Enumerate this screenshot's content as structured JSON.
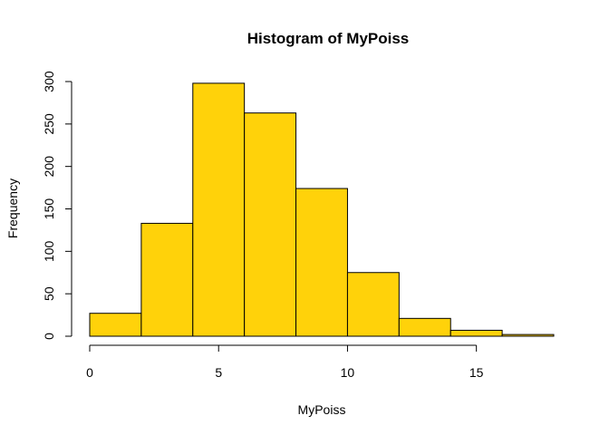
{
  "chart_data": {
    "type": "bar",
    "title": "Histogram of MyPoiss",
    "xlabel": "MyPoiss",
    "ylabel": "Frequency",
    "bins": [
      {
        "start": 0,
        "end": 2,
        "value": 27
      },
      {
        "start": 2,
        "end": 4,
        "value": 133
      },
      {
        "start": 4,
        "end": 6,
        "value": 298
      },
      {
        "start": 6,
        "end": 8,
        "value": 263
      },
      {
        "start": 8,
        "end": 10,
        "value": 174
      },
      {
        "start": 10,
        "end": 12,
        "value": 75
      },
      {
        "start": 12,
        "end": 14,
        "value": 21
      },
      {
        "start": 14,
        "end": 16,
        "value": 7
      },
      {
        "start": 16,
        "end": 18,
        "value": 2
      }
    ],
    "xlim": [
      0,
      18
    ],
    "ylim": [
      0,
      300
    ],
    "x_ticks": [
      0,
      5,
      10,
      15
    ],
    "y_ticks": [
      0,
      50,
      100,
      150,
      200,
      250,
      300
    ],
    "grid": false,
    "legend": "none",
    "bar_color": "#FFD20A",
    "edge_color": "#000000"
  }
}
